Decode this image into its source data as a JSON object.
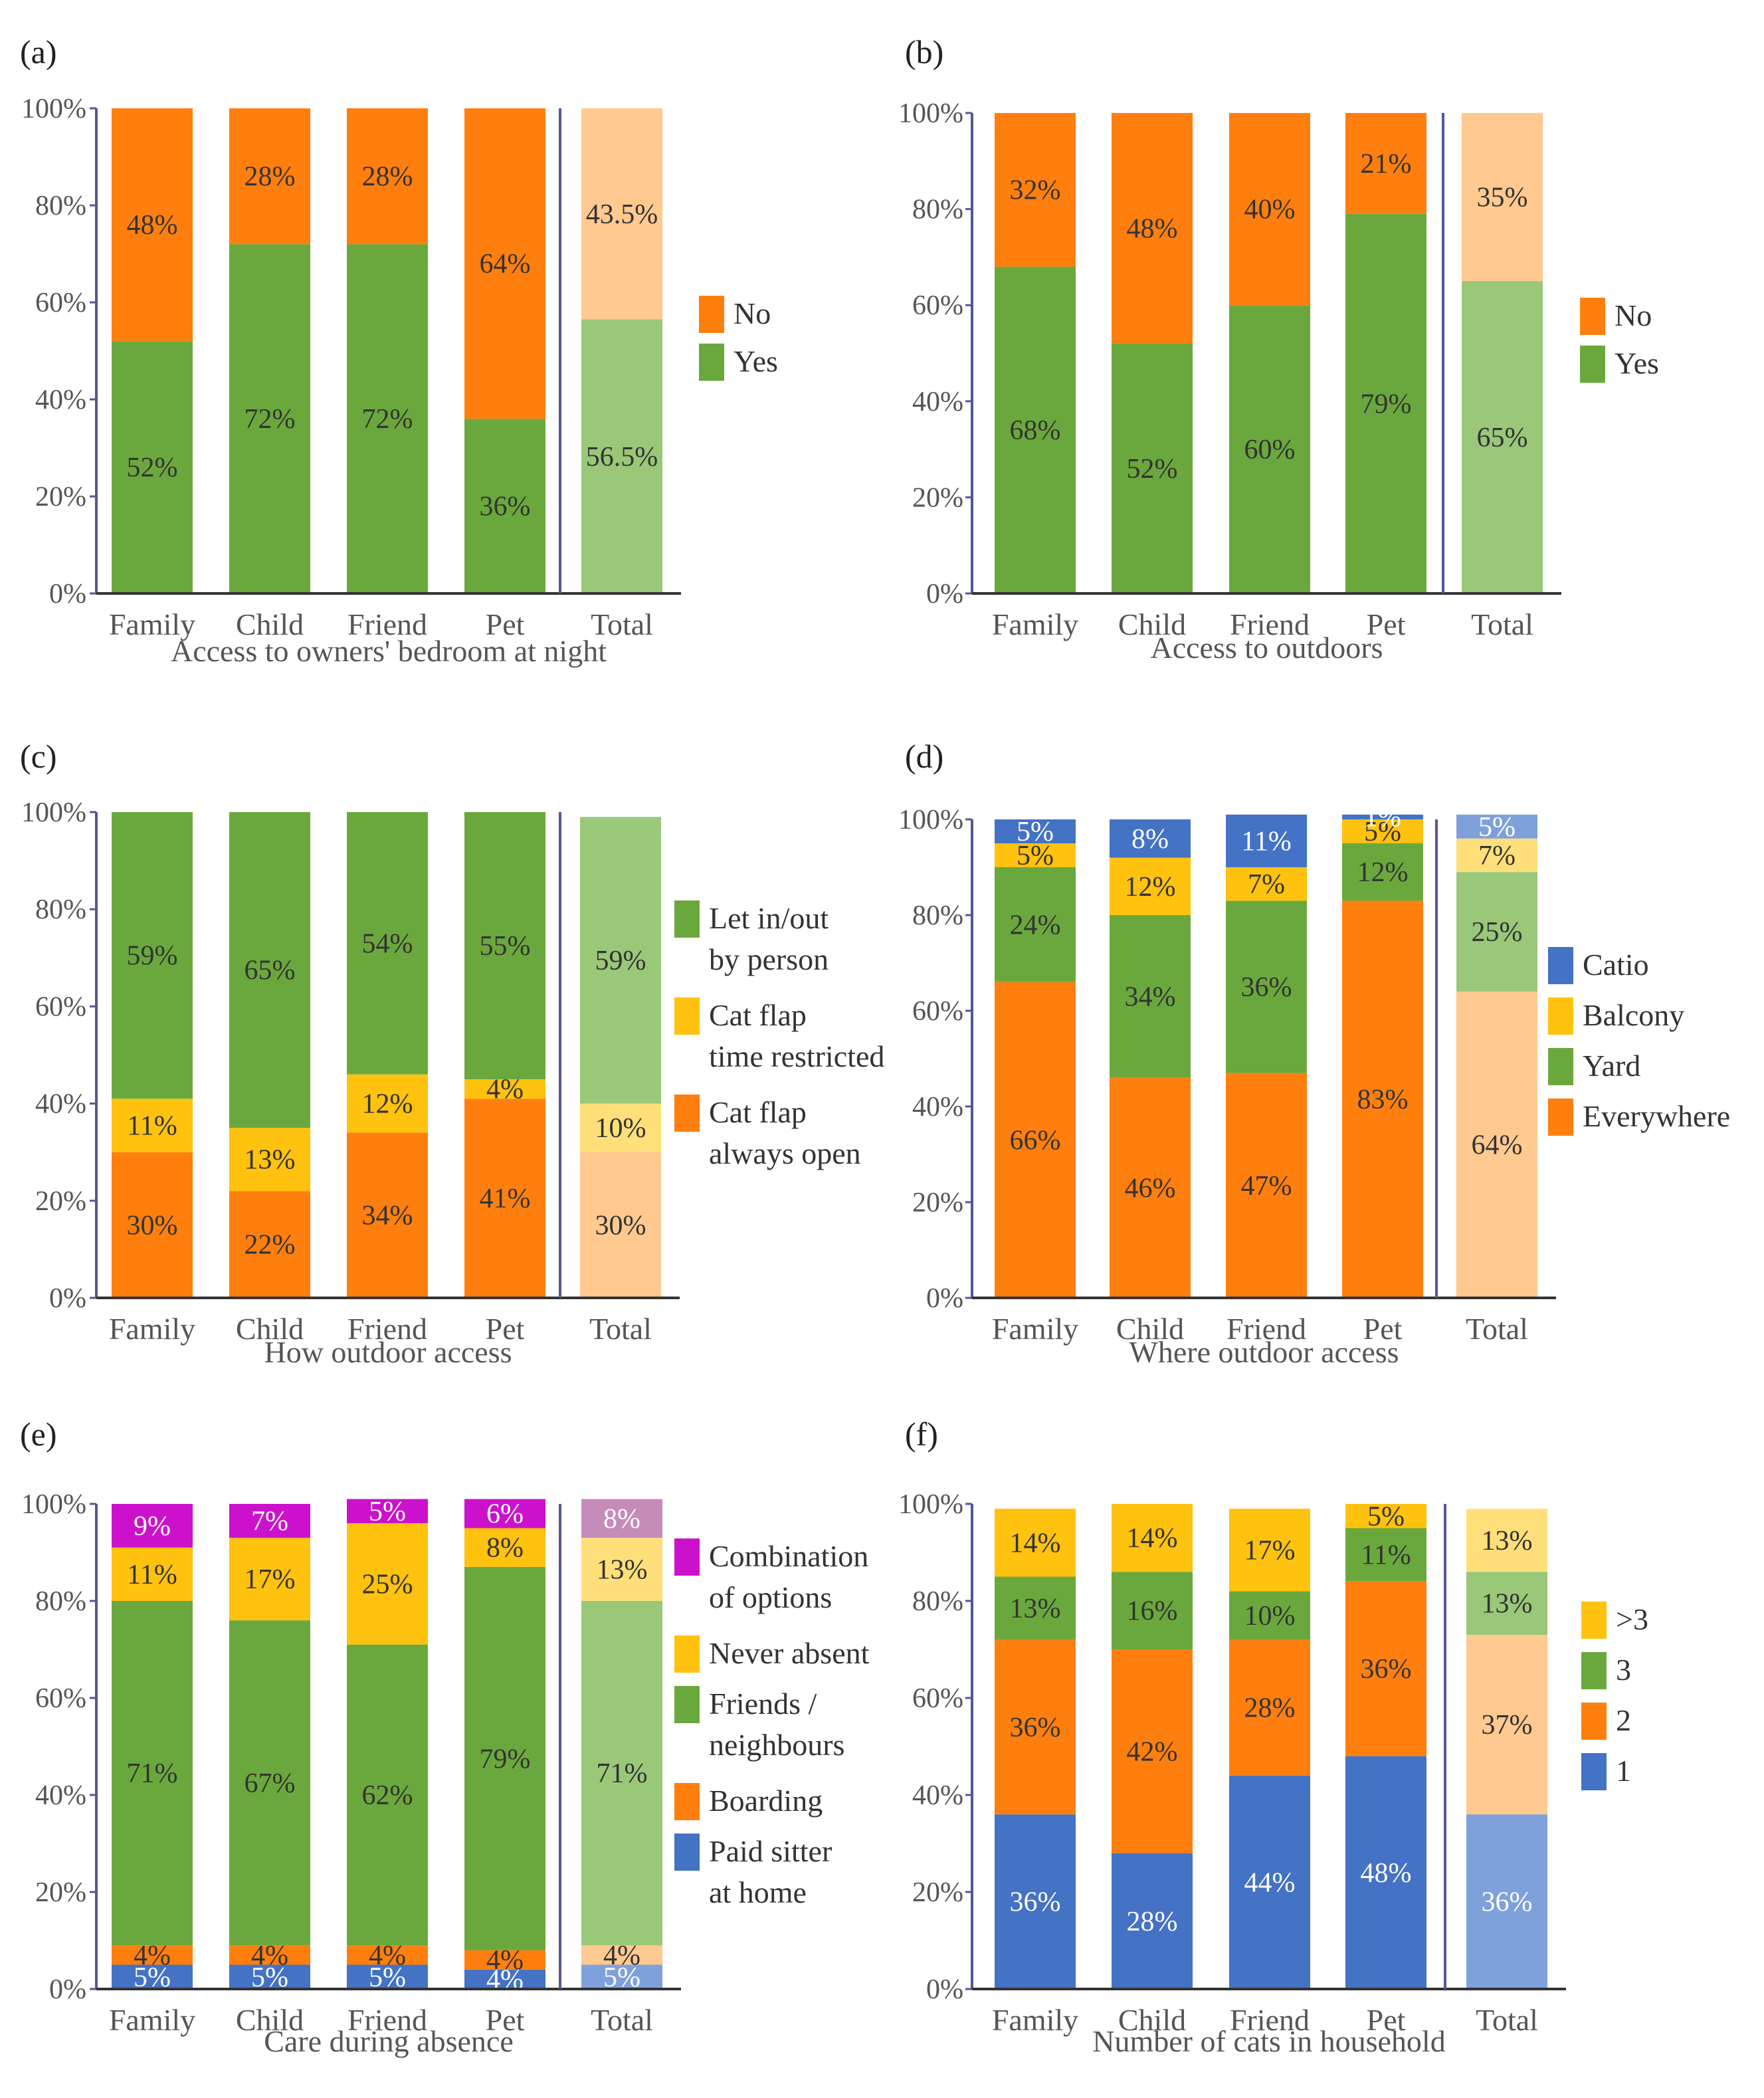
{
  "colors": {
    "orange": "#ff7f0e",
    "green": "#6aa83d",
    "yellow": "#ffc20e",
    "blue": "#4472c4",
    "magenta": "#cc11cc",
    "light_orange": "#ffc98f",
    "light_green": "#98c878",
    "light_yellow": "#ffdf7a",
    "light_blue": "#7fa1db",
    "light_magenta": "#c58cba",
    "axis": "#555599",
    "text": "#333333"
  },
  "chart_data": [
    {
      "type": "bar",
      "stacked": true,
      "panel_label": "(a)",
      "title": "",
      "xlabel": "Access to owners' bedroom at night",
      "ylabel": "",
      "ylim": [
        0,
        100
      ],
      "y_ticks": [
        "0%",
        "20%",
        "40%",
        "60%",
        "80%",
        "100%"
      ],
      "categories": [
        "Family",
        "Child",
        "Friend",
        "Pet",
        "Total"
      ],
      "series": [
        {
          "name": "Yes",
          "color_key": "green",
          "values": [
            52,
            72,
            72,
            36,
            56.5
          ],
          "labels": [
            "52%",
            "72%",
            "72%",
            "36%",
            "56.5%"
          ]
        },
        {
          "name": "No",
          "color_key": "orange",
          "values": [
            48,
            28,
            28,
            64,
            43.5
          ],
          "labels": [
            "48%",
            "28%",
            "28%",
            "64%",
            "43.5%"
          ]
        }
      ],
      "legend": [
        {
          "label": "No",
          "color_key": "orange"
        },
        {
          "label": "Yes",
          "color_key": "green"
        }
      ],
      "legend_position": "right"
    },
    {
      "type": "bar",
      "stacked": true,
      "panel_label": "(b)",
      "title": "",
      "xlabel": "Access to outdoors",
      "ylabel": "",
      "ylim": [
        0,
        100
      ],
      "y_ticks": [
        "0%",
        "20%",
        "40%",
        "60%",
        "80%",
        "100%"
      ],
      "categories": [
        "Family",
        "Child",
        "Friend",
        "Pet",
        "Total"
      ],
      "series": [
        {
          "name": "Yes",
          "color_key": "green",
          "values": [
            68,
            52,
            60,
            79,
            65
          ],
          "labels": [
            "68%",
            "52%",
            "60%",
            "79%",
            "65%"
          ]
        },
        {
          "name": "No",
          "color_key": "orange",
          "values": [
            32,
            48,
            40,
            21,
            35
          ],
          "labels": [
            "32%",
            "48%",
            "40%",
            "21%",
            "35%"
          ]
        }
      ],
      "legend": [
        {
          "label": "No",
          "color_key": "orange"
        },
        {
          "label": "Yes",
          "color_key": "green"
        }
      ],
      "legend_position": "right"
    },
    {
      "type": "bar",
      "stacked": true,
      "panel_label": "(c)",
      "title": "",
      "xlabel": "How outdoor access",
      "ylabel": "",
      "ylim": [
        0,
        100
      ],
      "y_ticks": [
        "0%",
        "20%",
        "40%",
        "60%",
        "80%",
        "100%"
      ],
      "categories": [
        "Family",
        "Child",
        "Friend",
        "Pet",
        "Total"
      ],
      "series": [
        {
          "name": "Cat flap always open",
          "color_key": "orange",
          "values": [
            30,
            22,
            34,
            41,
            30
          ],
          "labels": [
            "30%",
            "22%",
            "34%",
            "41%",
            "30%"
          ]
        },
        {
          "name": "Cat flap time restricted",
          "color_key": "yellow",
          "values": [
            11,
            13,
            12,
            4,
            10
          ],
          "labels": [
            "11%",
            "13%",
            "12%",
            "4%",
            "10%"
          ]
        },
        {
          "name": "Let in/out by person",
          "color_key": "green",
          "values": [
            59,
            65,
            54,
            55,
            59
          ],
          "labels": [
            "59%",
            "65%",
            "54%",
            "55%",
            "59%"
          ]
        }
      ],
      "legend": [
        {
          "label": "Let in/out",
          "label2": "by person",
          "color_key": "green"
        },
        {
          "label": "Cat flap",
          "label2": "time restricted",
          "color_key": "yellow"
        },
        {
          "label": "Cat flap",
          "label2": "always open",
          "color_key": "orange"
        }
      ],
      "legend_position": "right"
    },
    {
      "type": "bar",
      "stacked": true,
      "panel_label": "(d)",
      "title": "",
      "xlabel": "Where outdoor access",
      "ylabel": "",
      "ylim": [
        0,
        100
      ],
      "y_ticks": [
        "0%",
        "20%",
        "40%",
        "60%",
        "80%",
        "100%"
      ],
      "categories": [
        "Family",
        "Child",
        "Friend",
        "Pet",
        "Total"
      ],
      "series": [
        {
          "name": "Everywhere",
          "color_key": "orange",
          "values": [
            66,
            46,
            47,
            83,
            64
          ],
          "labels": [
            "66%",
            "46%",
            "47%",
            "83%",
            "64%"
          ]
        },
        {
          "name": "Yard",
          "color_key": "green",
          "values": [
            24,
            34,
            36,
            12,
            25
          ],
          "labels": [
            "24%",
            "34%",
            "36%",
            "12%",
            "25%"
          ]
        },
        {
          "name": "Balcony",
          "color_key": "yellow",
          "values": [
            5,
            12,
            7,
            5,
            7
          ],
          "labels": [
            "5%",
            "12%",
            "7%",
            "5%",
            "7%"
          ]
        },
        {
          "name": "Catio",
          "color_key": "blue",
          "values": [
            5,
            8,
            11,
            1,
            5
          ],
          "labels": [
            "5%",
            "8%",
            "11%",
            "1%",
            "5%"
          ]
        }
      ],
      "legend": [
        {
          "label": "Catio",
          "color_key": "blue"
        },
        {
          "label": "Balcony",
          "color_key": "yellow"
        },
        {
          "label": "Yard",
          "color_key": "green"
        },
        {
          "label": "Everywhere",
          "color_key": "orange"
        }
      ],
      "legend_position": "right"
    },
    {
      "type": "bar",
      "stacked": true,
      "panel_label": "(e)",
      "title": "",
      "xlabel": "Care during absence",
      "ylabel": "",
      "ylim": [
        0,
        100
      ],
      "y_ticks": [
        "0%",
        "20%",
        "40%",
        "60%",
        "80%",
        "100%"
      ],
      "categories": [
        "Family",
        "Child",
        "Friend",
        "Pet",
        "Total"
      ],
      "series": [
        {
          "name": "Paid sitter at home",
          "color_key": "blue",
          "values": [
            5,
            5,
            5,
            4,
            5
          ],
          "labels": [
            "5%",
            "5%",
            "5%",
            "4%",
            "5%"
          ]
        },
        {
          "name": "Boarding",
          "color_key": "orange",
          "values": [
            4,
            4,
            4,
            4,
            4
          ],
          "labels": [
            "4%",
            "4%",
            "4%",
            "4%",
            "4%"
          ]
        },
        {
          "name": "Friends / neighbours",
          "color_key": "green",
          "values": [
            71,
            67,
            62,
            79,
            71
          ],
          "labels": [
            "71%",
            "67%",
            "62%",
            "79%",
            "71%"
          ]
        },
        {
          "name": "Never absent",
          "color_key": "yellow",
          "values": [
            11,
            17,
            25,
            8,
            13
          ],
          "labels": [
            "11%",
            "17%",
            "25%",
            "8%",
            "13%"
          ]
        },
        {
          "name": "Combination of options",
          "color_key": "magenta",
          "values": [
            9,
            7,
            5,
            6,
            8
          ],
          "labels": [
            "9%",
            "7%",
            "5%",
            "6%",
            "8%"
          ]
        }
      ],
      "legend": [
        {
          "label": "Combination",
          "label2": "of options",
          "color_key": "magenta"
        },
        {
          "label": "Never absent",
          "color_key": "yellow"
        },
        {
          "label": "Friends /",
          "label2": "neighbours",
          "color_key": "green"
        },
        {
          "label": "Boarding",
          "color_key": "orange"
        },
        {
          "label": "Paid sitter",
          "label2": "at home",
          "color_key": "blue"
        }
      ],
      "legend_position": "right"
    },
    {
      "type": "bar",
      "stacked": true,
      "panel_label": "(f)",
      "title": "",
      "xlabel": "Number of cats in household",
      "ylabel": "",
      "ylim": [
        0,
        100
      ],
      "y_ticks": [
        "0%",
        "20%",
        "40%",
        "60%",
        "80%",
        "100%"
      ],
      "categories": [
        "Family",
        "Child",
        "Friend",
        "Pet",
        "Total"
      ],
      "series": [
        {
          "name": "1",
          "color_key": "blue",
          "values": [
            36,
            28,
            44,
            48,
            36
          ],
          "labels": [
            "36%",
            "28%",
            "44%",
            "48%",
            "36%"
          ]
        },
        {
          "name": "2",
          "color_key": "orange",
          "values": [
            36,
            42,
            28,
            36,
            37
          ],
          "labels": [
            "36%",
            "42%",
            "28%",
            "36%",
            "37%"
          ]
        },
        {
          "name": "3",
          "color_key": "green",
          "values": [
            13,
            16,
            10,
            11,
            13
          ],
          "labels": [
            "13%",
            "16%",
            "10%",
            "11%",
            "13%"
          ]
        },
        {
          "name": ">3",
          "color_key": "yellow",
          "values": [
            14,
            14,
            17,
            5,
            13
          ],
          "labels": [
            "14%",
            "14%",
            "17%",
            "5%",
            "13%"
          ]
        }
      ],
      "legend": [
        {
          "label": ">3",
          "color_key": "yellow"
        },
        {
          "label": "3",
          "color_key": "green"
        },
        {
          "label": "2",
          "color_key": "orange"
        },
        {
          "label": "1",
          "color_key": "blue"
        }
      ],
      "legend_position": "right"
    }
  ]
}
